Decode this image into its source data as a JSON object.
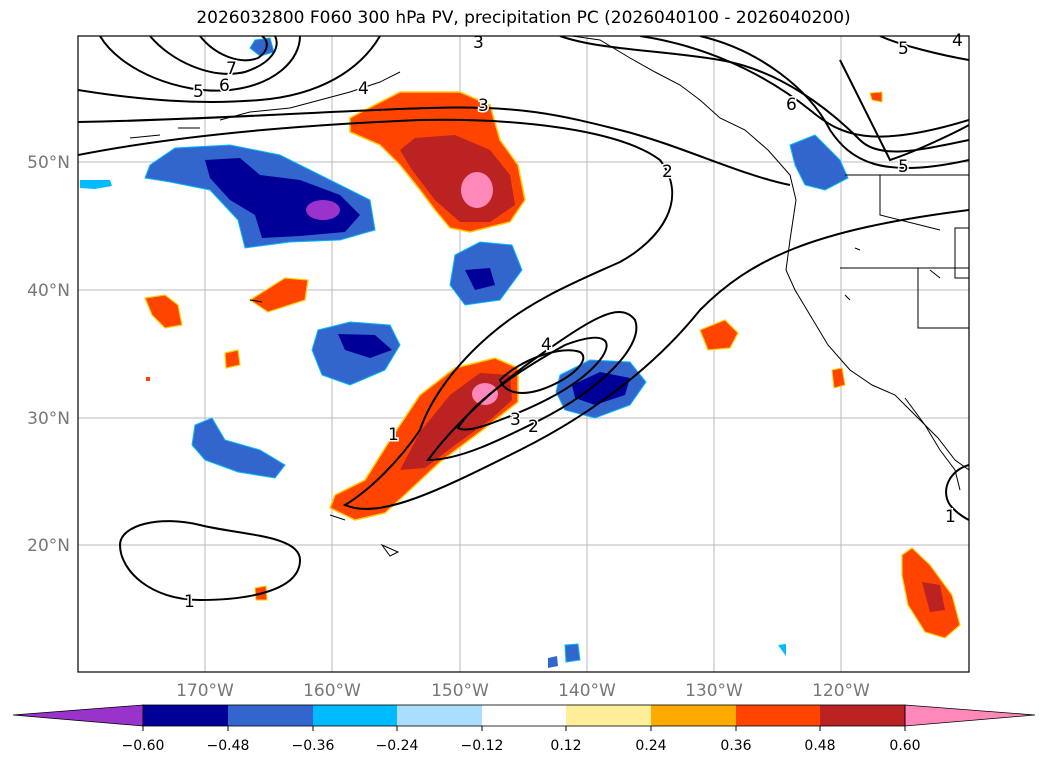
{
  "title": "2026032800 F060 300 hPa PV, precipitation PC (2026040100 - 2026040200)",
  "lat_labels": [
    "50°N",
    "40°N",
    "30°N",
    "20°N"
  ],
  "lon_labels": [
    "170°W",
    "160°W",
    "150°W",
    "140°W",
    "130°W",
    "120°W"
  ],
  "contour_labels": [
    "5",
    "6",
    "7",
    "3",
    "4",
    "3",
    "2",
    "6",
    "5",
    "5",
    "4",
    "4",
    "3",
    "2",
    "1",
    "1",
    "1"
  ],
  "colorbar": {
    "ticks": [
      "−0.60",
      "−0.48",
      "−0.36",
      "−0.24",
      "−0.12",
      "0.12",
      "0.24",
      "0.36",
      "0.48",
      "0.60"
    ],
    "colors": [
      "#9933cc",
      "#000099",
      "#3366cc",
      "#00bbff",
      "#aaddff",
      "#ffffff",
      "#ffee99",
      "#ffaa00",
      "#ff4400",
      "#bb2222",
      "#ff88bb"
    ]
  }
}
